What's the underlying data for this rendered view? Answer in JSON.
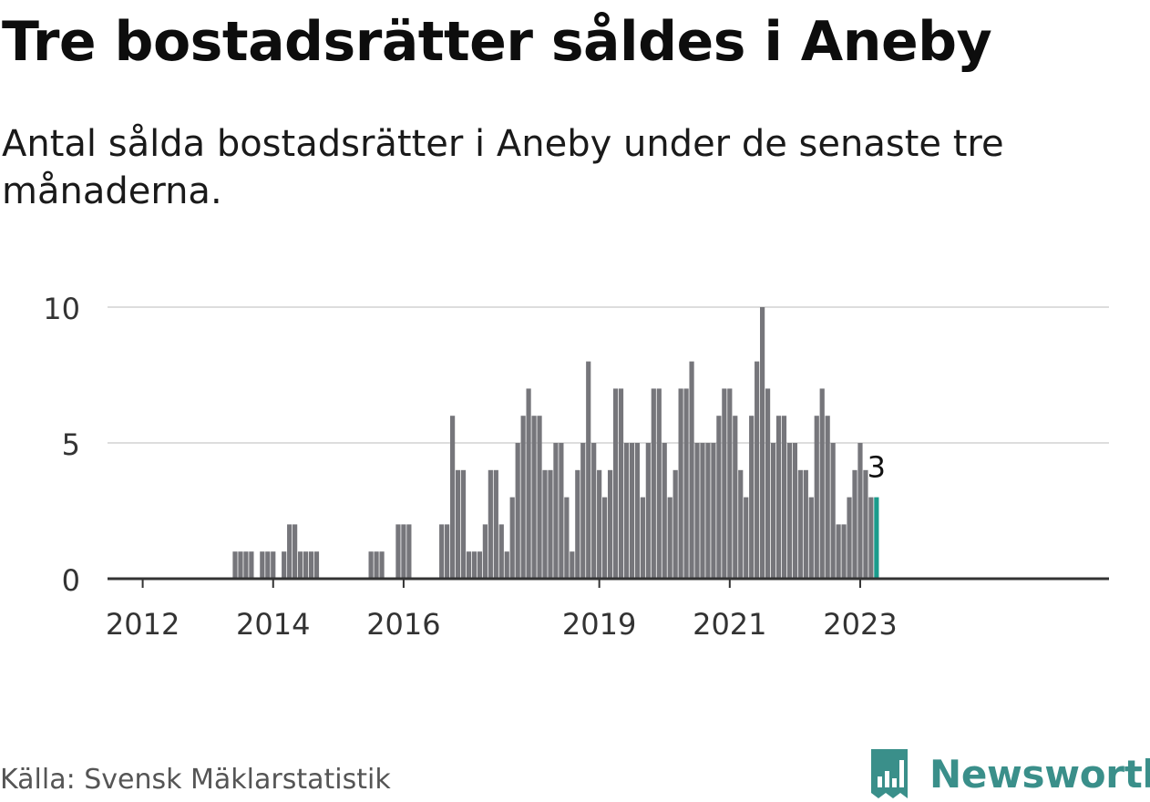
{
  "title": "Tre bostadsrätter såldes i Aneby",
  "subtitle": "Antal sålda bostadsrätter i Aneby under de senaste tre månaderna.",
  "source": "Källa: Svensk Mäklarstatistik",
  "brand": {
    "name": "Newsworthy",
    "color": "#3a8f8a"
  },
  "colors": {
    "bar": "#76767b",
    "highlight": "#1a9b8c",
    "grid": "#dddddd",
    "axis": "#333333",
    "tick_text": "#333333"
  },
  "chart_data": {
    "type": "bar",
    "title": "Tre bostadsrätter såldes i Aneby",
    "xlabel": "",
    "ylabel": "",
    "ylim": [
      0,
      10
    ],
    "yticks": [
      0,
      5,
      10
    ],
    "grid": true,
    "x_start": "2011-07",
    "x_tick_labels": [
      {
        "label": "2012",
        "index": 6
      },
      {
        "label": "2014",
        "index": 30
      },
      {
        "label": "2016",
        "index": 54
      },
      {
        "label": "2019",
        "index": 90
      },
      {
        "label": "2021",
        "index": 114
      },
      {
        "label": "2023",
        "index": 138
      }
    ],
    "values": [
      0,
      0,
      0,
      0,
      0,
      0,
      0,
      0,
      0,
      0,
      0,
      0,
      0,
      0,
      0,
      0,
      0,
      0,
      0,
      0,
      0,
      0,
      0,
      1,
      1,
      1,
      1,
      0,
      1,
      1,
      1,
      0,
      1,
      2,
      2,
      1,
      1,
      1,
      1,
      0,
      0,
      0,
      0,
      0,
      0,
      0,
      0,
      0,
      1,
      1,
      1,
      0,
      0,
      2,
      2,
      2,
      0,
      0,
      0,
      0,
      0,
      2,
      2,
      6,
      4,
      4,
      1,
      1,
      1,
      2,
      4,
      4,
      2,
      1,
      3,
      5,
      6,
      7,
      6,
      6,
      4,
      4,
      5,
      5,
      3,
      1,
      4,
      5,
      8,
      5,
      4,
      3,
      4,
      7,
      7,
      5,
      5,
      5,
      3,
      5,
      7,
      7,
      5,
      3,
      4,
      7,
      7,
      8,
      5,
      5,
      5,
      5,
      6,
      7,
      7,
      6,
      4,
      3,
      6,
      8,
      10,
      7,
      5,
      6,
      6,
      5,
      5,
      4,
      4,
      3,
      6,
      7,
      6,
      5,
      2,
      2,
      3,
      4,
      5,
      4,
      3,
      3
    ],
    "last_value_label": "3"
  }
}
